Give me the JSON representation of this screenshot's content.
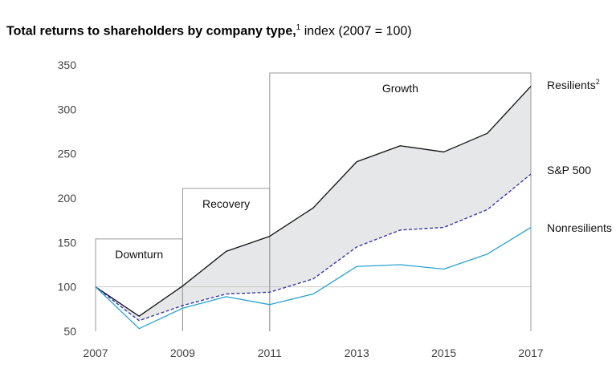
{
  "title": {
    "bold": "Total returns to shareholders by company type,",
    "sup": "1",
    "rest": "index (2007 = 100)"
  },
  "chart_data": {
    "type": "line",
    "x": [
      2007,
      2008,
      2009,
      2010,
      2011,
      2012,
      2013,
      2014,
      2015,
      2016,
      2017
    ],
    "xticks": [
      "2007",
      "2009",
      "2011",
      "2013",
      "2015",
      "2017"
    ],
    "yticks": [
      "350",
      "300",
      "250",
      "200",
      "150",
      "100",
      "50"
    ],
    "ylim": [
      50,
      350
    ],
    "xlim": [
      2007,
      2017
    ],
    "series": [
      {
        "name": "Resilients",
        "sup": "2",
        "color": "#111111",
        "style": "solid",
        "values": [
          100,
          67,
          101,
          140,
          157,
          189,
          241,
          259,
          252,
          273,
          326
        ]
      },
      {
        "name": "S&P 500",
        "sup": "",
        "color": "#3a3aa6",
        "style": "dashed",
        "values": [
          100,
          62,
          79,
          92,
          94,
          109,
          145,
          164,
          167,
          187,
          227
        ]
      },
      {
        "name": "Nonresilients",
        "sup": "",
        "color": "#2aa3d0",
        "style": "solid",
        "values": [
          100,
          53,
          76,
          89,
          80,
          92,
          123,
          125,
          120,
          137,
          167
        ]
      }
    ],
    "phases": [
      {
        "label": "Downturn",
        "x_start": 2007,
        "x_end": 2009,
        "top": 154
      },
      {
        "label": "Recovery",
        "x_start": 2009,
        "x_end": 2011,
        "top": 211
      },
      {
        "label": "Growth",
        "x_start": 2011,
        "x_end": 2017,
        "top": 341
      }
    ],
    "shading": {
      "between": [
        "Resilients",
        "S&P 500"
      ],
      "color": "#e6e7e8"
    },
    "grid": "horizontal-at-100"
  }
}
